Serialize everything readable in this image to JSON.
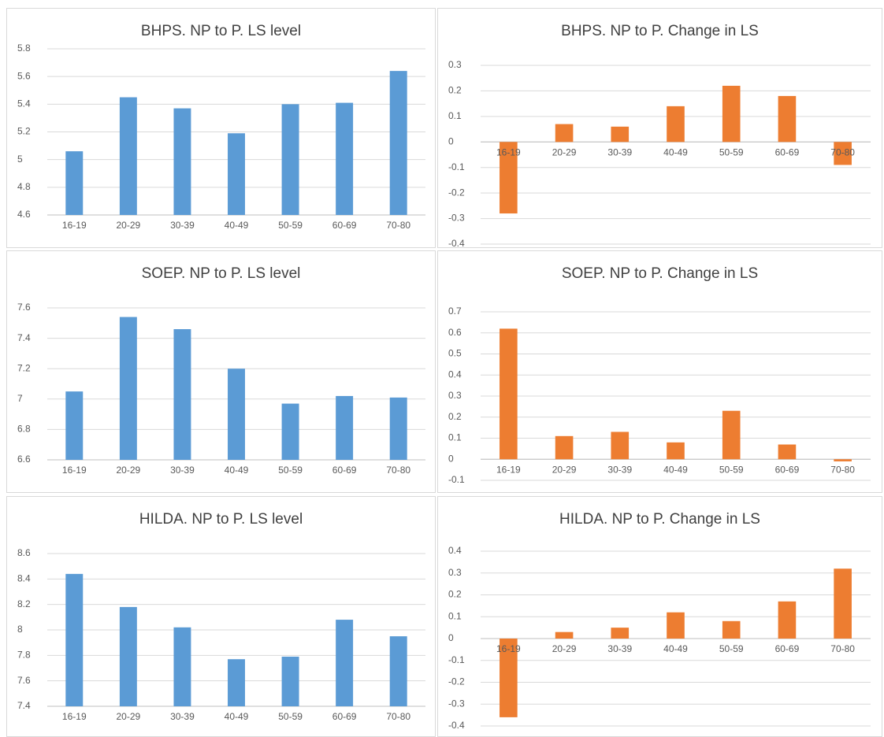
{
  "chart_data": [
    {
      "type": "bar",
      "title": "BHPS. NP to P. LS level",
      "categories": [
        "16-19",
        "20-29",
        "30-39",
        "40-49",
        "50-59",
        "60-69",
        "70-80"
      ],
      "values": [
        5.06,
        5.45,
        5.37,
        5.19,
        5.4,
        5.41,
        5.64
      ],
      "color": "#5b9bd5",
      "ylim": [
        4.6,
        5.8
      ],
      "yticks": [
        4.6,
        4.8,
        5,
        5.2,
        5.4,
        5.6,
        5.8
      ],
      "grid": true
    },
    {
      "type": "bar",
      "title": "BHPS. NP to P.  Change in LS",
      "categories": [
        "16-19",
        "20-29",
        "30-39",
        "40-49",
        "50-59",
        "60-69",
        "70-80"
      ],
      "values": [
        -0.28,
        0.07,
        0.06,
        0.14,
        0.22,
        0.18,
        -0.09
      ],
      "color": "#ed7d31",
      "ylim": [
        -0.4,
        0.3
      ],
      "yticks": [
        -0.4,
        -0.3,
        -0.2,
        -0.1,
        0,
        0.1,
        0.2,
        0.3
      ],
      "grid": true
    },
    {
      "type": "bar",
      "title": "SOEP. NP to P. LS level",
      "categories": [
        "16-19",
        "20-29",
        "30-39",
        "40-49",
        "50-59",
        "60-69",
        "70-80"
      ],
      "values": [
        7.05,
        7.54,
        7.46,
        7.2,
        6.97,
        7.02,
        7.01
      ],
      "color": "#5b9bd5",
      "ylim": [
        6.6,
        7.6
      ],
      "yticks": [
        6.6,
        6.8,
        7,
        7.2,
        7.4,
        7.6
      ],
      "grid": true
    },
    {
      "type": "bar",
      "title": "SOEP. NP to P.  Change in LS",
      "categories": [
        "16-19",
        "20-29",
        "30-39",
        "40-49",
        "50-59",
        "60-69",
        "70-80"
      ],
      "values": [
        0.62,
        0.11,
        0.13,
        0.08,
        0.23,
        0.07,
        -0.01
      ],
      "color": "#ed7d31",
      "ylim": [
        -0.1,
        0.7
      ],
      "yticks": [
        -0.1,
        0,
        0.1,
        0.2,
        0.3,
        0.4,
        0.5,
        0.6,
        0.7
      ],
      "grid": true
    },
    {
      "type": "bar",
      "title": "HILDA. NP to P. LS level",
      "categories": [
        "16-19",
        "20-29",
        "30-39",
        "40-49",
        "50-59",
        "60-69",
        "70-80"
      ],
      "values": [
        8.44,
        8.18,
        8.02,
        7.77,
        7.79,
        8.08,
        7.95
      ],
      "color": "#5b9bd5",
      "ylim": [
        7.4,
        8.6
      ],
      "yticks": [
        7.4,
        7.6,
        7.8,
        8,
        8.2,
        8.4,
        8.6
      ],
      "grid": true
    },
    {
      "type": "bar",
      "title": "HILDA. NP to P.  Change in LS",
      "categories": [
        "16-19",
        "20-29",
        "30-39",
        "40-49",
        "50-59",
        "60-69",
        "70-80"
      ],
      "values": [
        -0.36,
        0.03,
        0.05,
        0.12,
        0.08,
        0.17,
        0.32
      ],
      "color": "#ed7d31",
      "ylim": [
        -0.4,
        0.4
      ],
      "yticks": [
        -0.4,
        -0.3,
        -0.2,
        -0.1,
        0,
        0.1,
        0.2,
        0.3,
        0.4
      ],
      "grid": true
    }
  ]
}
